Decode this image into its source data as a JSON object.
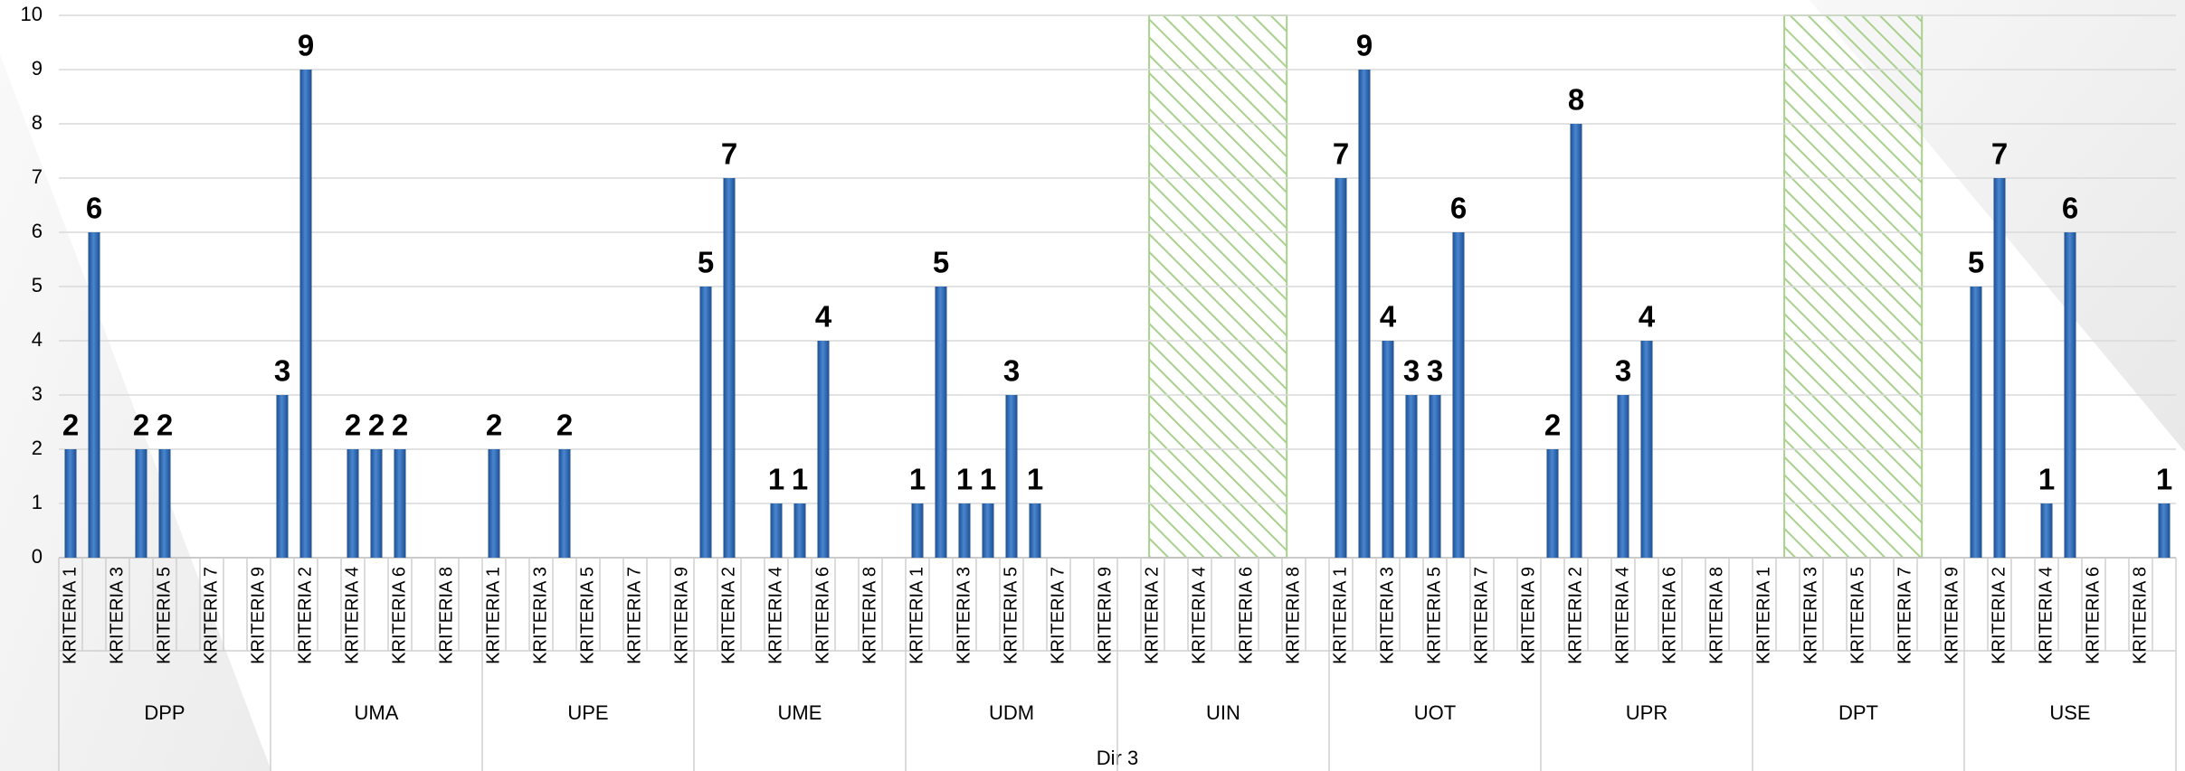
{
  "chart_data": {
    "type": "bar",
    "xlabel": "Dir 3",
    "color": "#2f6db5",
    "ylim": [
      0,
      10
    ],
    "yticks": [
      0,
      1,
      2,
      3,
      4,
      5,
      6,
      7,
      8,
      9,
      10
    ],
    "grid": true,
    "groups": [
      "DPP",
      "UMA",
      "UPE",
      "UME",
      "UDM",
      "UIN",
      "UOT",
      "UPR",
      "DPT",
      "USE"
    ],
    "categories": [
      "KRITERIA 1",
      null,
      "KRITERIA 3",
      null,
      "KRITERIA 5",
      null,
      "KRITERIA 7",
      null,
      "KRITERIA 9",
      null,
      "KRITERIA 2",
      null,
      "KRITERIA 4",
      null,
      "KRITERIA 6",
      null,
      "KRITERIA 8",
      null,
      "KRITERIA 1",
      null,
      "KRITERIA 3",
      null,
      "KRITERIA 5",
      null,
      "KRITERIA 7",
      null,
      "KRITERIA 9",
      null,
      "KRITERIA 2",
      null,
      "KRITERIA 4",
      null,
      "KRITERIA 6",
      null,
      "KRITERIA 8",
      null,
      "KRITERIA 1",
      null,
      "KRITERIA 3",
      null,
      "KRITERIA 5",
      null,
      "KRITERIA 7",
      null,
      "KRITERIA 9",
      null,
      "KRITERIA 2",
      null,
      "KRITERIA 4",
      null,
      "KRITERIA 6",
      null,
      "KRITERIA 8",
      null,
      "KRITERIA 1",
      null,
      "KRITERIA 3",
      null,
      "KRITERIA 5",
      null,
      "KRITERIA 7",
      null,
      "KRITERIA 9",
      null,
      "KRITERIA 2",
      null,
      "KRITERIA 4",
      null,
      "KRITERIA 6",
      null,
      "KRITERIA 8",
      null,
      "KRITERIA 1",
      null,
      "KRITERIA 3",
      null,
      "KRITERIA 5",
      null,
      "KRITERIA 7",
      null,
      "KRITERIA 9",
      null,
      "KRITERIA 2",
      null,
      "KRITERIA 4",
      null,
      "KRITERIA 6",
      null,
      "KRITERIA 8",
      null
    ],
    "values": [
      2,
      6,
      null,
      2,
      2,
      null,
      null,
      null,
      null,
      3,
      9,
      null,
      2,
      2,
      2,
      null,
      null,
      null,
      2,
      null,
      null,
      2,
      null,
      null,
      null,
      null,
      null,
      5,
      7,
      null,
      1,
      1,
      4,
      null,
      null,
      null,
      1,
      5,
      1,
      1,
      3,
      1,
      null,
      null,
      null,
      null,
      null,
      null,
      null,
      null,
      null,
      null,
      null,
      null,
      7,
      9,
      4,
      3,
      3,
      6,
      null,
      null,
      null,
      2,
      8,
      null,
      3,
      4,
      null,
      null,
      null,
      null,
      null,
      null,
      null,
      null,
      null,
      null,
      null,
      null,
      null,
      5,
      7,
      null,
      1,
      6,
      null,
      null,
      null,
      1
    ]
  }
}
